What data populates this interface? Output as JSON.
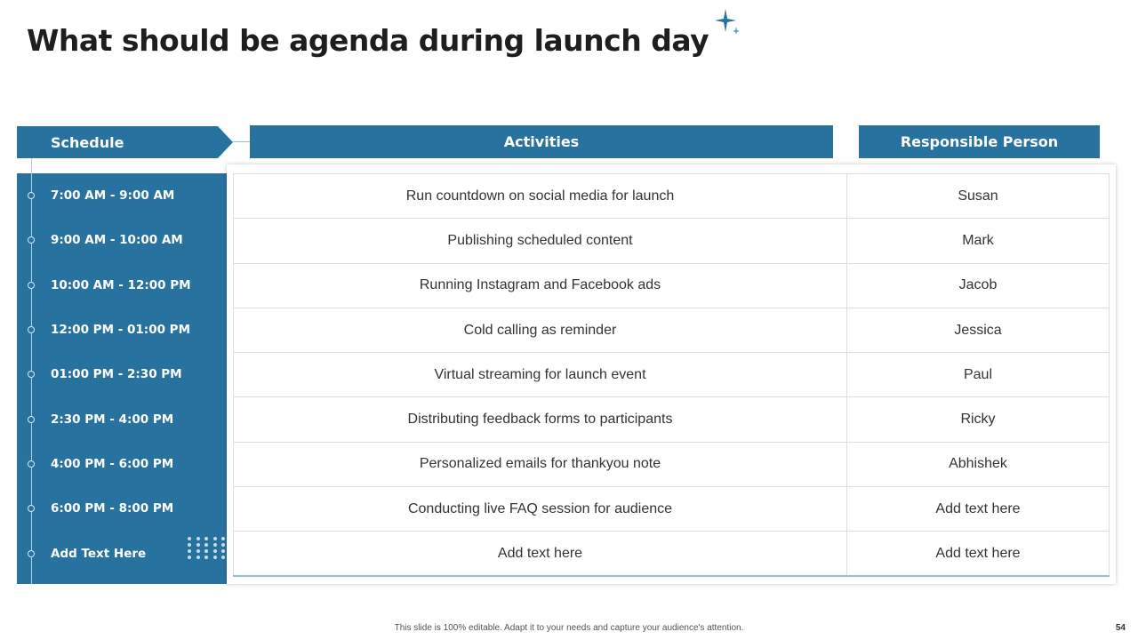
{
  "title": "What should be agenda during launch day",
  "headers": {
    "schedule": "Schedule",
    "activities": "Activities",
    "responsible": "Responsible Person"
  },
  "rows": [
    {
      "time": "7:00 AM -  9:00 AM",
      "activity": "Run countdown on social media for launch",
      "person": "Susan"
    },
    {
      "time": "9:00 AM -  10:00 AM",
      "activity": "Publishing scheduled content",
      "person": "Mark"
    },
    {
      "time": "10:00 AM -  12:00 PM",
      "activity": "Running Instagram and Facebook ads",
      "person": "Jacob"
    },
    {
      "time": "12:00 PM -  01:00 PM",
      "activity": "Cold calling as reminder",
      "person": "Jessica"
    },
    {
      "time": "01:00 PM -  2:30 PM",
      "activity": "Virtual streaming for launch event",
      "person": "Paul"
    },
    {
      "time": "2:30 PM -  4:00 PM",
      "activity": "Distributing feedback forms to participants",
      "person": "Ricky"
    },
    {
      "time": "4:00 PM - 6:00 PM",
      "activity": "Personalized emails for thankyou note",
      "person": "Abhishek"
    },
    {
      "time": "6:00 PM - 8:00 PM",
      "activity": "Conducting live FAQ session for audience",
      "person": "Add text here"
    },
    {
      "time": "Add Text Here",
      "activity": "Add text here",
      "person": "Add text here"
    }
  ],
  "footer": "This slide is 100% editable. Adapt it to your needs and capture your audience's attention.",
  "page_number": "54",
  "colors": {
    "accent": "#2872a0"
  }
}
